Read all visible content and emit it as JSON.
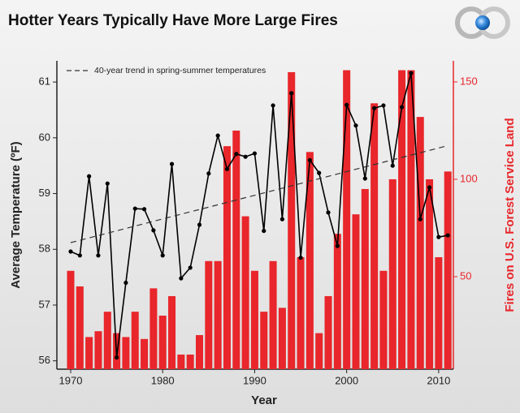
{
  "chart_data": {
    "type": "combo",
    "title": "Hotter Years Typically Have More Large Fires",
    "xlabel": "Year",
    "ylabel": "Average Temperature (ºF)",
    "y2label": "Fires on U.S. Forest Service Land",
    "x": [
      1970,
      1971,
      1972,
      1973,
      1974,
      1975,
      1976,
      1977,
      1978,
      1979,
      1980,
      1981,
      1982,
      1983,
      1984,
      1985,
      1986,
      1987,
      1988,
      1989,
      1990,
      1991,
      1992,
      1993,
      1994,
      1995,
      1996,
      1997,
      1998,
      1999,
      2000,
      2001,
      2002,
      2003,
      2004,
      2005,
      2006,
      2007,
      2008,
      2009,
      2010,
      2011
    ],
    "xlim": [
      1968.5,
      2011.6
    ],
    "xticks": [
      1970,
      1980,
      1990,
      2000,
      2010
    ],
    "ylim": [
      55.85,
      61.38
    ],
    "yticks": [
      56,
      57,
      58,
      59,
      60,
      61
    ],
    "y2lim": [
      2.5,
      160.8
    ],
    "y2ticks": [
      50,
      100,
      150
    ],
    "legend": "upper left",
    "series": [
      {
        "name": "Fires on U.S. Forest Service Land",
        "type": "bar",
        "axis": "y2",
        "color": "#e8262b",
        "values": [
          53,
          45,
          19,
          22,
          32,
          21,
          19,
          32,
          18,
          44,
          30,
          40,
          10,
          10,
          20,
          58,
          58,
          117,
          125,
          81,
          53,
          32,
          58,
          34,
          155,
          60,
          114,
          21,
          40,
          72,
          156,
          82,
          95,
          139,
          53,
          100,
          156,
          156,
          132,
          100,
          60,
          104
        ]
      },
      {
        "name": "Average Temperature",
        "type": "line",
        "color": "#000000",
        "values": [
          57.96,
          57.89,
          59.31,
          57.89,
          59.18,
          56.06,
          57.4,
          58.73,
          58.72,
          58.34,
          57.89,
          59.53,
          57.48,
          57.67,
          58.44,
          59.36,
          60.04,
          59.44,
          59.71,
          59.66,
          59.72,
          58.33,
          60.58,
          58.54,
          60.8,
          57.85,
          59.6,
          59.37,
          58.66,
          58.06,
          60.59,
          60.22,
          59.27,
          60.53,
          60.58,
          59.5,
          60.55,
          61.16,
          58.54,
          59.11,
          58.22,
          58.25
        ]
      },
      {
        "name": "40-year trend in spring-summer temperatures",
        "type": "trend",
        "color": "#333333",
        "x": [
          1970,
          2011
        ],
        "values": [
          58.12,
          59.86
        ]
      }
    ]
  }
}
